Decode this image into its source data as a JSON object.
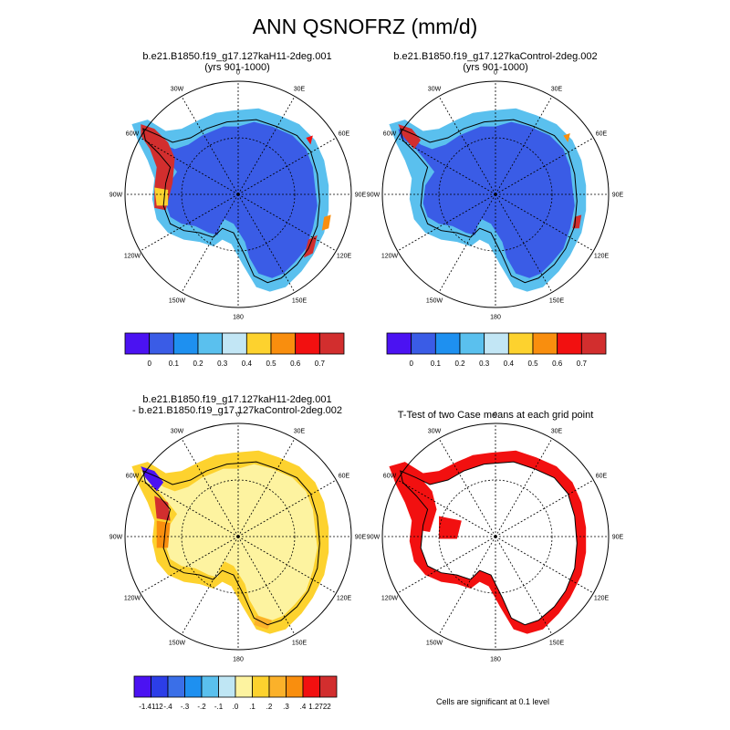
{
  "title": "ANN QSNOFRZ (mm/d)",
  "lon_labels": [
    "0",
    "30E",
    "60E",
    "90E",
    "120E",
    "150E",
    "180",
    "150W",
    "120W",
    "90W",
    "60W",
    "30W"
  ],
  "panels": [
    {
      "title_line1": "b.e21.B1850.f19_g17.127kaH11-2deg.001",
      "title_line2": "(yrs 901-1000)"
    },
    {
      "title_line1": "b.e21.B1850.f19_g17.127kaControl-2deg.002",
      "title_line2": "(yrs 901-1000)"
    },
    {
      "title_line1": "b.e21.B1850.f19_g17.127kaH11-2deg.001",
      "title_line2": "- b.e21.B1850.f19_g17.127kaControl-2deg.002"
    },
    {
      "title_line1": "T-Test of two Case means at each grid point",
      "title_line2": ""
    }
  ],
  "colorbar_top": {
    "colors": [
      "#4b12f2",
      "#3a5ce6",
      "#1e90f0",
      "#5ac0ee",
      "#c2e6f5",
      "#fdd22e",
      "#f98e0e",
      "#f21010",
      "#d22e2e"
    ],
    "labels": [
      "0",
      "0.1",
      "0.2",
      "0.3",
      "0.4",
      "0.5",
      "0.6",
      "0.7"
    ]
  },
  "colorbar_diff": {
    "colors": [
      "#4b12f2",
      "#2c3ee8",
      "#3a6fe8",
      "#1e90f0",
      "#5ac0ee",
      "#bfe6f4",
      "#fdf3a0",
      "#fdd22e",
      "#fbb12a",
      "#f98e0e",
      "#f21010",
      "#d22e2e"
    ],
    "labels": [
      "-1.4112",
      "-.4",
      "-.3",
      "-.2",
      "-.1",
      ".0",
      ".1",
      ".2",
      ".3",
      ".4",
      "1.2722"
    ]
  },
  "ttest_note": "Cells are significant at 0.1 level",
  "colors": {
    "ice": "#3a5ce6",
    "diff_fill": "#fdf3a0",
    "significant": "#f21010"
  }
}
